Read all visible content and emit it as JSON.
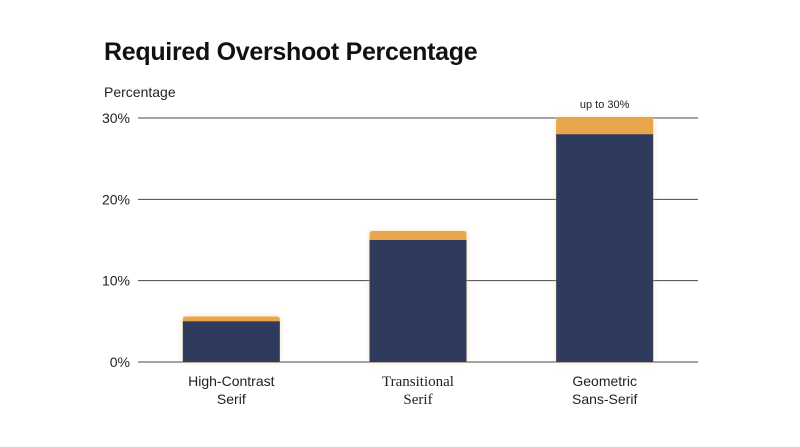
{
  "chart_data": {
    "type": "bar",
    "title": "Required Overshoot Percentage",
    "ylabel": "Percentage",
    "xlabel": "",
    "ylim": [
      0,
      30
    ],
    "yticks": [
      {
        "value": 0,
        "label": "0%"
      },
      {
        "value": 10,
        "label": "10%"
      },
      {
        "value": 20,
        "label": "20%"
      },
      {
        "value": 30,
        "label": "30%"
      }
    ],
    "grid": true,
    "categories": [
      {
        "lines": [
          "High-Contrast",
          "Serif"
        ],
        "serif": false
      },
      {
        "lines": [
          "Transitional",
          "Serif"
        ],
        "serif": true
      },
      {
        "lines": [
          "Geometric",
          "Sans-Serif"
        ],
        "serif": false
      }
    ],
    "series": [
      {
        "values": [
          5,
          15,
          28
        ],
        "color": "#2f3b5c"
      },
      {
        "values": [
          0.6,
          1.1,
          2.0
        ],
        "color": "#e9a64c"
      }
    ],
    "annotations": [
      {
        "category_index": 2,
        "text": "up to 30%"
      }
    ],
    "colors": {
      "base": "#2f3b5c",
      "overshoot": "#e9a64c",
      "grid": "#444444",
      "glow": "#f3c58a"
    }
  }
}
